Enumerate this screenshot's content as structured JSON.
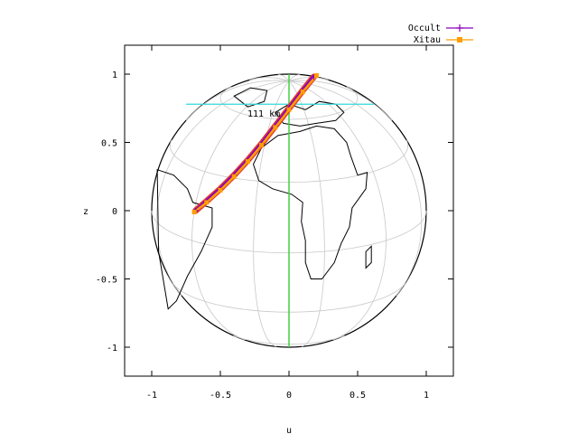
{
  "chart_data": {
    "type": "line",
    "xlabel": "u",
    "ylabel": "z",
    "xlim": [
      -1.2,
      1.2
    ],
    "ylim": [
      -1.2,
      1.2
    ],
    "xticks": [
      {
        "v": -1,
        "label": "-1"
      },
      {
        "v": -0.5,
        "label": "-0.5"
      },
      {
        "v": 0,
        "label": "0"
      },
      {
        "v": 0.5,
        "label": "0.5"
      },
      {
        "v": 1,
        "label": "1"
      }
    ],
    "yticks": [
      {
        "v": -1,
        "label": "-1"
      },
      {
        "v": -0.5,
        "label": "-0.5"
      },
      {
        "v": 0,
        "label": "0"
      },
      {
        "v": 0.5,
        "label": "0.5"
      },
      {
        "v": 1,
        "label": "1"
      }
    ],
    "grid": true,
    "legend_position": "top-right",
    "annotation": {
      "text": "111 km",
      "x": -0.08,
      "y": 0.7
    },
    "series": [
      {
        "name": "Occult",
        "color": "#8a00c0",
        "x": [
          -0.68,
          -0.6,
          -0.5,
          -0.4,
          -0.3,
          -0.2,
          -0.1,
          0.0,
          0.1,
          0.18
        ],
        "y": [
          0.0,
          0.07,
          0.16,
          0.26,
          0.37,
          0.49,
          0.62,
          0.75,
          0.88,
          0.98
        ]
      },
      {
        "name": "Xitau",
        "color": "#ff9e00",
        "x": [
          -0.69,
          -0.6,
          -0.5,
          -0.4,
          -0.3,
          -0.2,
          -0.1,
          0.0,
          0.1,
          0.2
        ],
        "y": [
          -0.01,
          0.06,
          0.15,
          0.25,
          0.36,
          0.48,
          0.61,
          0.74,
          0.87,
          0.99
        ]
      }
    ],
    "track_outline_color": "#e04030",
    "meridian_color": "#40d040",
    "parallel_line": {
      "color": "#30d8d8",
      "y": 0.78,
      "x": [
        -0.75,
        0.62
      ]
    }
  }
}
